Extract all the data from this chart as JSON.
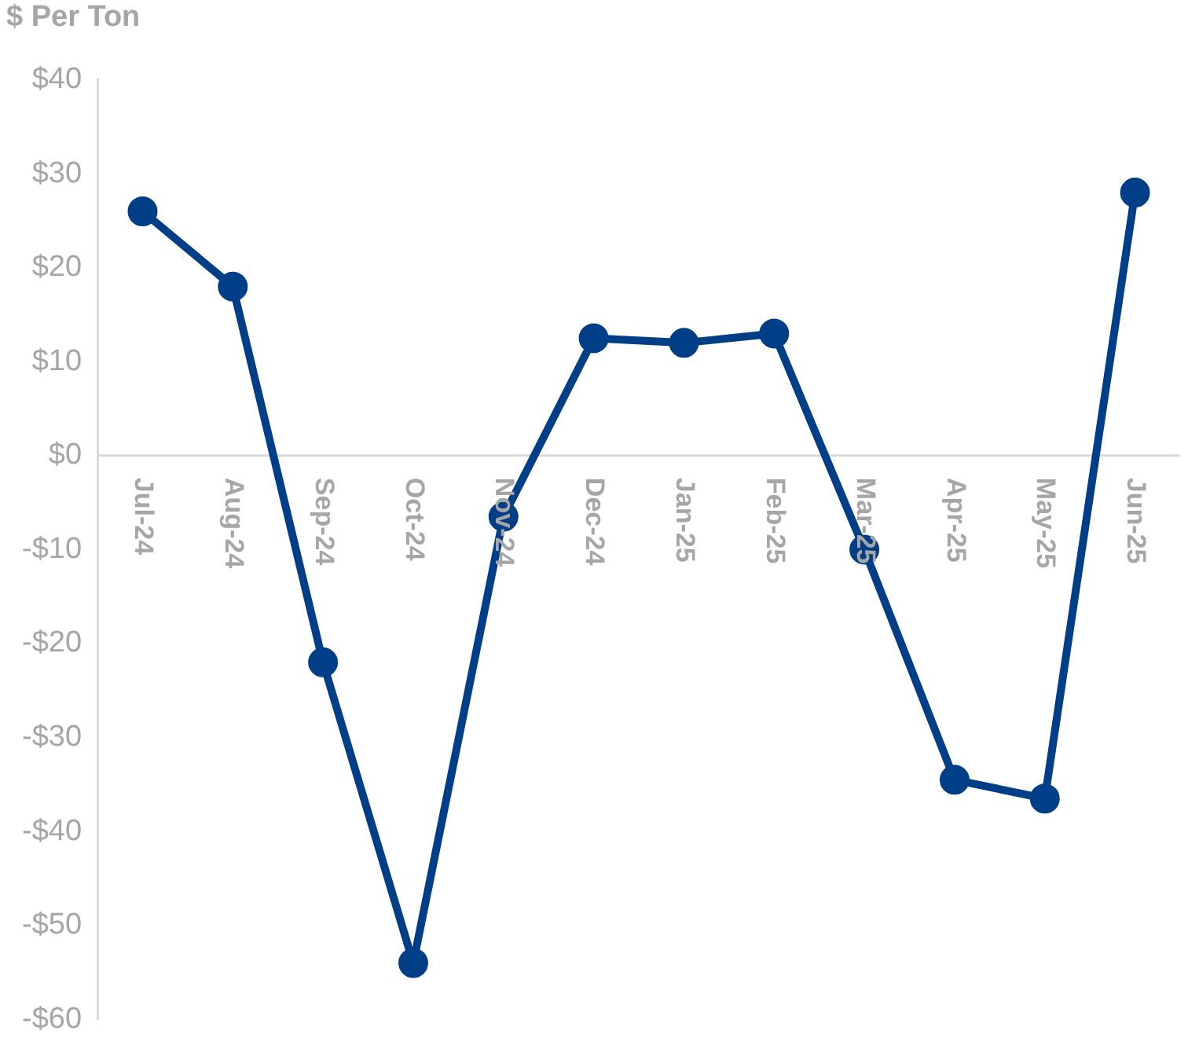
{
  "chart_data": {
    "type": "line",
    "title": "$ Per Ton",
    "categories": [
      "Jul-24",
      "Aug-24",
      "Sep-24",
      "Oct-24",
      "Nov-24",
      "Dec-24",
      "Jan-25",
      "Feb-25",
      "Mar-25",
      "Apr-25",
      "May-25",
      "Jun-25"
    ],
    "series": [
      {
        "color": "#003f87",
        "values": [
          26,
          18,
          -22,
          -54,
          -6.5,
          12.5,
          12,
          13,
          -10,
          -34.5,
          -36.5,
          28
        ]
      }
    ],
    "ylim": [
      -60,
      40
    ],
    "yticks": [
      {
        "value": -60,
        "label": "-$60"
      },
      {
        "value": -50,
        "label": "-$50"
      },
      {
        "value": -40,
        "label": "-$40"
      },
      {
        "value": -30,
        "label": "-$30"
      },
      {
        "value": -20,
        "label": "-$20"
      },
      {
        "value": -10,
        "label": "-$10"
      },
      {
        "value": 0,
        "label": "$0"
      },
      {
        "value": 10,
        "label": "$10"
      },
      {
        "value": 20,
        "label": "$20"
      },
      {
        "value": 30,
        "label": "$30"
      },
      {
        "value": 40,
        "label": "$40"
      }
    ],
    "grid": false,
    "legend": false,
    "marker": "circle",
    "line_style": "solid"
  }
}
